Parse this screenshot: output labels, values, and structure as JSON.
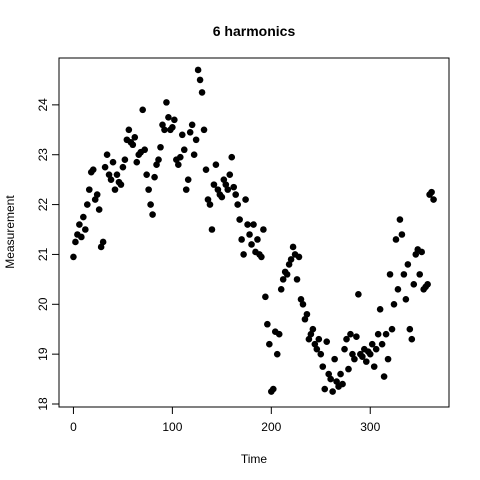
{
  "chart_data": {
    "type": "scatter",
    "title": "6 harmonics",
    "x_label": "Time",
    "y_label": "Measurement",
    "color": "#000000",
    "xlim": [
      -14.6,
      379.6
    ],
    "ylim": [
      17.94,
      24.94
    ],
    "xticks": [
      0,
      100,
      200,
      300
    ],
    "yticks": [
      18,
      19,
      20,
      21,
      22,
      23,
      24
    ],
    "x": [
      0,
      2,
      4,
      6,
      8,
      10,
      12,
      14,
      16,
      18,
      20,
      22,
      24,
      26,
      28,
      30,
      32,
      34,
      36,
      38,
      40,
      42,
      44,
      46,
      48,
      50,
      52,
      54,
      56,
      58,
      60,
      62,
      64,
      66,
      68,
      70,
      72,
      74,
      76,
      78,
      80,
      82,
      84,
      86,
      88,
      90,
      92,
      94,
      96,
      98,
      100,
      102,
      104,
      106,
      108,
      110,
      112,
      114,
      116,
      118,
      120,
      122,
      124,
      126,
      128,
      130,
      132,
      134,
      136,
      138,
      140,
      142,
      144,
      146,
      148,
      150,
      152,
      154,
      156,
      158,
      160,
      162,
      164,
      166,
      168,
      170,
      172,
      174,
      176,
      178,
      180,
      182,
      184,
      186,
      188,
      190,
      192,
      194,
      196,
      198,
      200,
      202,
      204,
      206,
      208,
      210,
      212,
      214,
      216,
      218,
      220,
      222,
      224,
      226,
      228,
      230,
      232,
      234,
      236,
      238,
      240,
      242,
      244,
      246,
      248,
      250,
      252,
      254,
      256,
      258,
      260,
      262,
      264,
      266,
      268,
      270,
      272,
      274,
      276,
      278,
      280,
      282,
      284,
      286,
      288,
      290,
      292,
      294,
      296,
      298,
      300,
      302,
      304,
      306,
      308,
      310,
      312,
      314,
      316,
      318,
      320,
      322,
      324,
      326,
      328,
      330,
      332,
      334,
      336,
      338,
      340,
      342,
      344,
      346,
      348,
      350,
      352,
      354,
      356,
      358,
      360,
      362,
      364
    ],
    "values": [
      20.95,
      21.25,
      21.4,
      21.6,
      21.35,
      21.75,
      21.5,
      22.0,
      22.3,
      22.65,
      22.7,
      22.1,
      22.2,
      21.9,
      21.15,
      21.25,
      22.75,
      23.0,
      22.6,
      22.5,
      22.85,
      22.3,
      22.6,
      22.45,
      22.4,
      22.75,
      22.9,
      23.3,
      23.5,
      23.25,
      23.2,
      23.35,
      22.85,
      23.0,
      23.05,
      23.9,
      23.1,
      22.6,
      22.3,
      22.0,
      21.8,
      22.55,
      22.8,
      22.9,
      23.15,
      23.6,
      23.5,
      24.05,
      23.75,
      23.5,
      23.55,
      23.7,
      22.9,
      22.8,
      22.95,
      23.4,
      23.1,
      22.3,
      22.5,
      23.45,
      23.6,
      23.0,
      23.3,
      24.7,
      24.5,
      24.25,
      23.5,
      22.7,
      22.1,
      22.0,
      21.5,
      22.4,
      22.8,
      22.3,
      22.2,
      22.15,
      22.5,
      22.4,
      22.3,
      22.6,
      22.95,
      22.35,
      22.2,
      22.0,
      21.7,
      21.3,
      21.0,
      22.1,
      21.6,
      21.4,
      21.2,
      21.6,
      21.05,
      21.3,
      21.0,
      20.95,
      21.5,
      20.15,
      19.6,
      19.2,
      18.25,
      18.3,
      19.45,
      19.0,
      19.4,
      20.3,
      20.5,
      20.65,
      20.6,
      20.8,
      20.9,
      21.15,
      21.0,
      20.5,
      20.95,
      20.1,
      20.0,
      19.7,
      19.8,
      19.3,
      19.4,
      19.5,
      19.2,
      19.1,
      19.3,
      19.0,
      18.75,
      18.3,
      19.25,
      18.6,
      18.5,
      18.25,
      18.9,
      18.45,
      18.35,
      18.6,
      18.4,
      19.1,
      19.3,
      18.7,
      19.4,
      19.0,
      18.9,
      19.35,
      20.2,
      19.0,
      18.95,
      19.1,
      18.85,
      19.05,
      19.0,
      19.2,
      18.75,
      19.1,
      19.4,
      19.9,
      19.2,
      18.55,
      19.4,
      18.9,
      20.6,
      19.5,
      20.0,
      21.3,
      20.3,
      21.7,
      21.4,
      20.6,
      20.1,
      20.8,
      19.5,
      19.3,
      20.4,
      21.0,
      21.1,
      20.6,
      21.05,
      20.3,
      20.35,
      20.4,
      22.2,
      22.25,
      22.1
    ]
  }
}
